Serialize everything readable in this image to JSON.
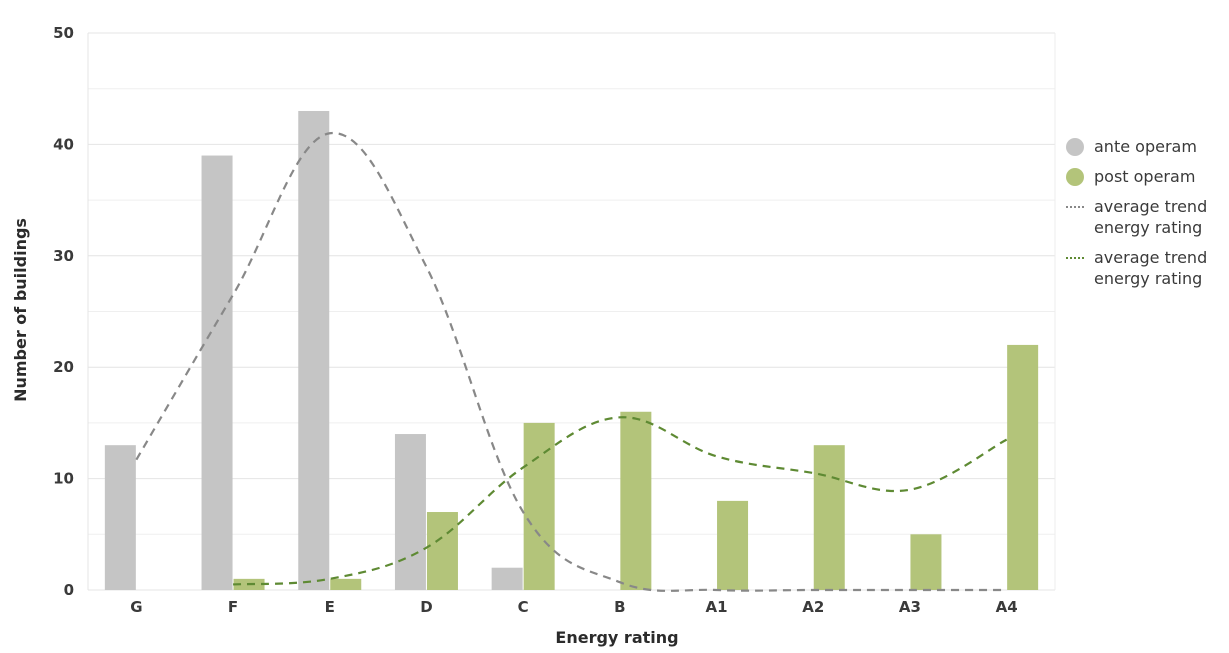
{
  "chart_data": {
    "type": "bar",
    "xlabel": "Energy rating",
    "ylabel": "Number of buildings",
    "ylim": [
      0,
      50
    ],
    "yticks": [
      0,
      10,
      20,
      30,
      40,
      50
    ],
    "grid": true,
    "legend_position": "right",
    "categories": [
      "G",
      "F",
      "E",
      "D",
      "C",
      "B",
      "A1",
      "A2",
      "A3",
      "A4"
    ],
    "series": [
      {
        "name": "ante operam",
        "kind": "bar",
        "color": "#c5c5c5",
        "values": [
          13,
          39,
          43,
          14,
          2,
          0,
          0,
          0,
          0,
          0
        ]
      },
      {
        "name": "post operam",
        "kind": "bar",
        "color": "#b3c47a",
        "values": [
          0,
          1,
          1,
          7,
          15,
          16,
          8,
          13,
          5,
          22
        ]
      },
      {
        "name": "average trend energy rating",
        "kind": "trendline",
        "color": "#888888",
        "values": [
          11.7,
          26.5,
          41,
          29,
          7,
          0.7,
          0,
          0,
          0,
          0
        ]
      },
      {
        "name": "average trend energy rating",
        "kind": "trendline",
        "color": "#5e8a33",
        "values": [
          null,
          0.5,
          1,
          3.8,
          11,
          15.5,
          12,
          10.5,
          9,
          13.5
        ]
      }
    ]
  },
  "legend": [
    {
      "label": "ante operam",
      "swatch": "dot",
      "color": "#c5c5c5"
    },
    {
      "label": "post operam",
      "swatch": "dot",
      "color": "#b3c47a"
    },
    {
      "label": "average trend\nenergy rating",
      "swatch": "dash",
      "color": "#888888"
    },
    {
      "label": "average trend\nenergy rating",
      "swatch": "dash",
      "color": "#5e8a33"
    }
  ]
}
